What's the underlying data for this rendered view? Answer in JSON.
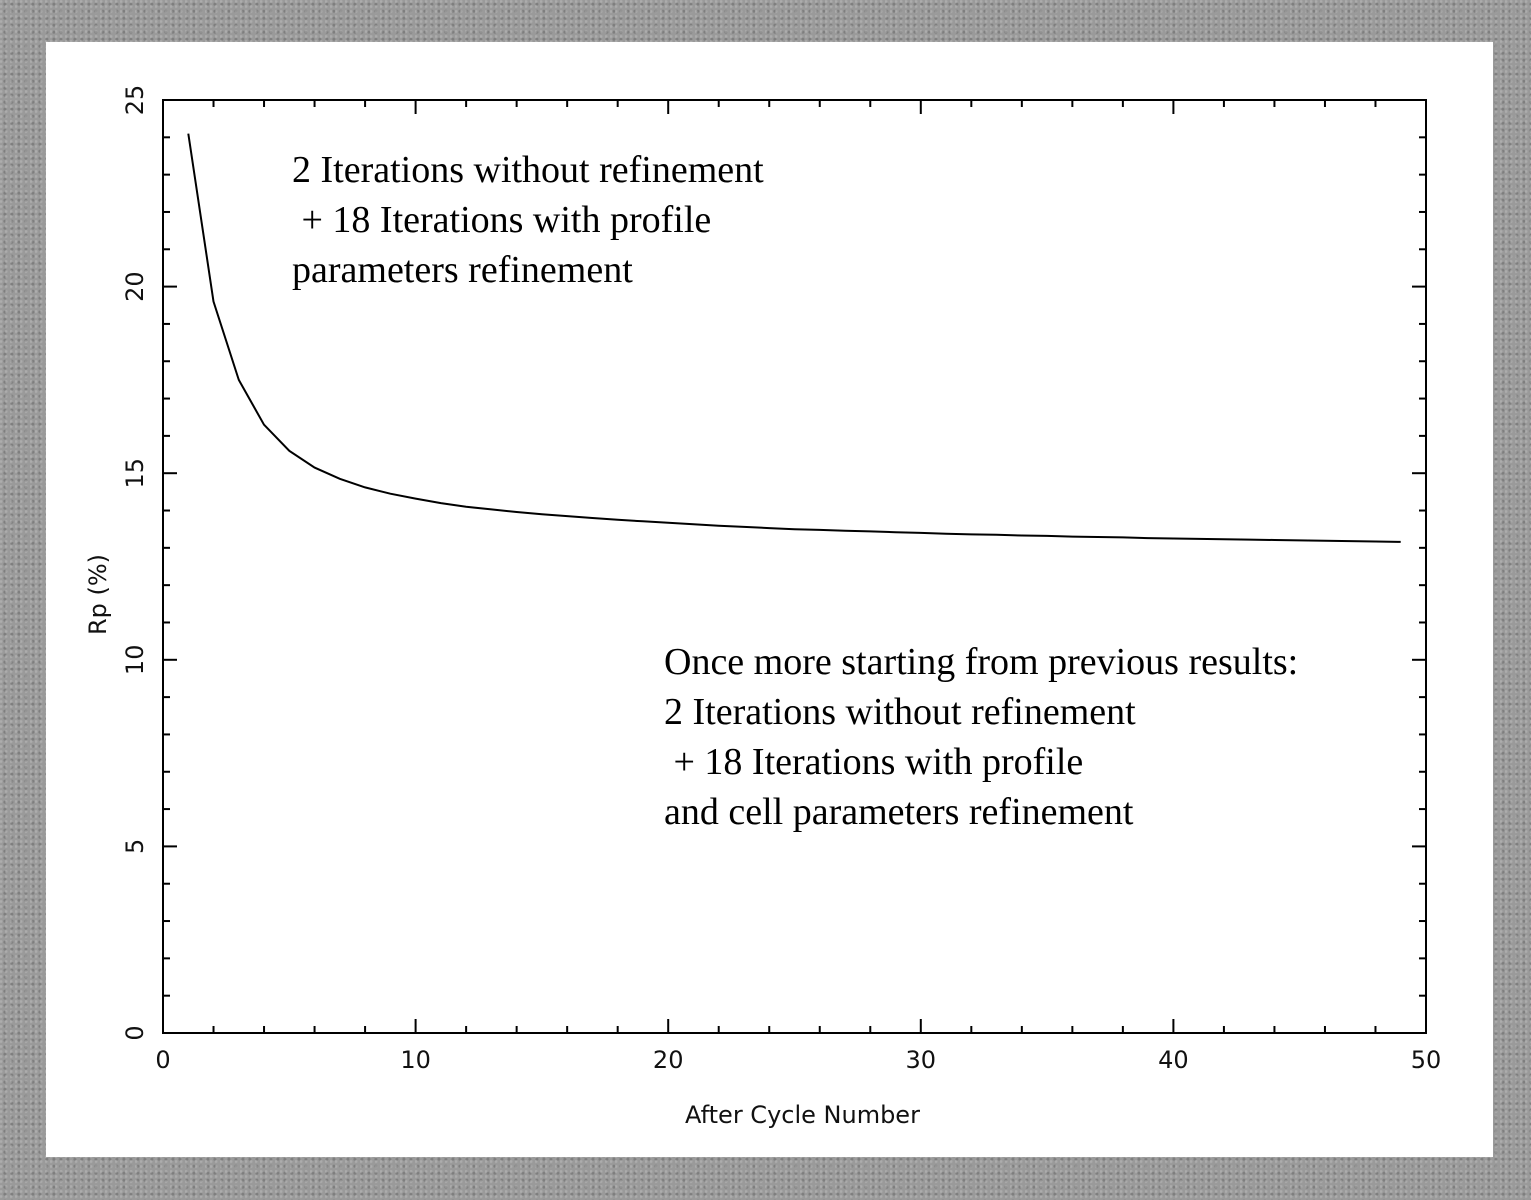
{
  "chart_data": {
    "type": "line",
    "title": "",
    "xlabel": "After Cycle Number",
    "ylabel": "Rp (%)",
    "xlim": [
      0,
      50
    ],
    "ylim": [
      0,
      25
    ],
    "x_ticks": [
      "0",
      "10",
      "20",
      "30",
      "40",
      "50"
    ],
    "y_ticks": [
      "0",
      "5",
      "10",
      "15",
      "20",
      "25"
    ],
    "grid": false,
    "series": [
      {
        "x": [
          1,
          2,
          3,
          4,
          5,
          6,
          7,
          8,
          9,
          10,
          11,
          12,
          13,
          14,
          15,
          16,
          17,
          18,
          19,
          20,
          21,
          22,
          23,
          24,
          25,
          26,
          27,
          28,
          29,
          30,
          31,
          32,
          33,
          34,
          35,
          36,
          37,
          38,
          39,
          40,
          41,
          42,
          43,
          44,
          45,
          46,
          47,
          48,
          49
        ],
        "y": [
          24.1,
          19.6,
          17.5,
          16.3,
          15.6,
          15.15,
          14.85,
          14.62,
          14.45,
          14.32,
          14.2,
          14.1,
          14.03,
          13.96,
          13.9,
          13.85,
          13.8,
          13.75,
          13.71,
          13.67,
          13.63,
          13.59,
          13.56,
          13.53,
          13.5,
          13.48,
          13.46,
          13.44,
          13.42,
          13.4,
          13.38,
          13.36,
          13.35,
          13.33,
          13.32,
          13.3,
          13.29,
          13.28,
          13.26,
          13.25,
          13.24,
          13.23,
          13.22,
          13.21,
          13.2,
          13.19,
          13.18,
          13.17,
          13.16
        ]
      }
    ],
    "annotations": [
      {
        "lines": [
          "2 Iterations without refinement",
          " + 18 Iterations with profile",
          "parameters refinement"
        ]
      },
      {
        "lines": [
          "Once more starting from previous results:",
          "2 Iterations without refinement",
          " + 18 Iterations with profile",
          "and cell parameters refinement"
        ]
      }
    ],
    "colors": {
      "line": "#000000",
      "background": "#ffffff",
      "scan_border": "#9a9a9a"
    }
  }
}
